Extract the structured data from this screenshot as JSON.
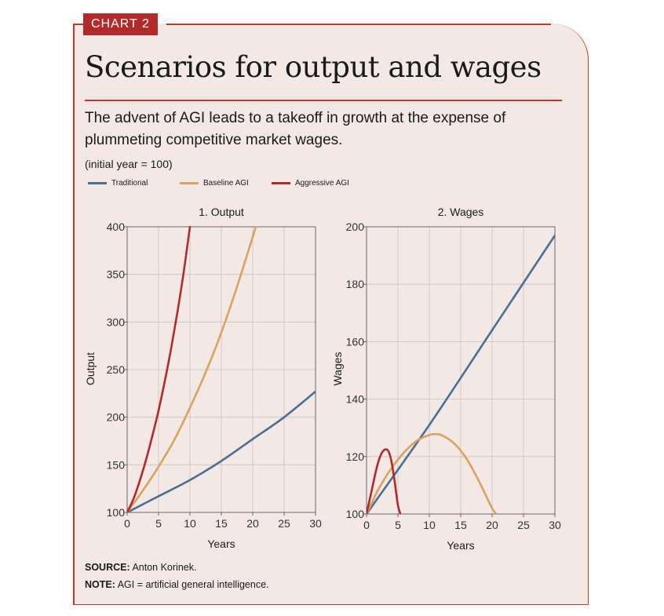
{
  "badge": "CHART 2",
  "title": "Scenarios for output and wages",
  "subtitle": "The advent of AGI leads to a takeoff in growth at the expense of plummeting competitive market wages.",
  "unit_note": "(initial year = 100)",
  "legend": [
    {
      "label": "Traditional",
      "color": "#4a6f93"
    },
    {
      "label": "Baseline AGI",
      "color": "#d9a35b"
    },
    {
      "label": "Aggressive AGI",
      "color": "#b22a2a"
    }
  ],
  "footer": {
    "source_label": "SOURCE:",
    "source_text": "Anton Korinek.",
    "note_label": "NOTE:",
    "note_text": "AGI = artificial general intelligence."
  },
  "colors": {
    "accent": "#c0392b",
    "background": "#f2e8e5",
    "grid": "#c8c2bf"
  },
  "chart_data": [
    {
      "type": "line",
      "title": "1. Output",
      "xlabel": "Years",
      "ylabel": "Output",
      "xlim": [
        0,
        30
      ],
      "ylim": [
        100,
        400
      ],
      "xticks": [
        0,
        5,
        10,
        15,
        20,
        25,
        30
      ],
      "yticks": [
        100,
        150,
        200,
        250,
        300,
        350,
        400
      ],
      "grid": true,
      "series": [
        {
          "name": "Traditional",
          "color": "#4a6f93",
          "x": [
            0,
            5,
            10,
            15,
            20,
            25,
            30
          ],
          "y": [
            100,
            117,
            134,
            154,
            177,
            200,
            227
          ]
        },
        {
          "name": "Baseline AGI",
          "color": "#d9a35b",
          "x": [
            0,
            2.5,
            5,
            7.5,
            10,
            12.5,
            15,
            17.5,
            20.5
          ],
          "y": [
            100,
            123,
            148,
            176,
            210,
            247,
            289,
            337,
            400
          ]
        },
        {
          "name": "Aggressive AGI",
          "color": "#b22a2a",
          "x": [
            0,
            1,
            2,
            3,
            4,
            5,
            6,
            7,
            8,
            9,
            10
          ],
          "y": [
            100,
            114,
            133,
            155,
            180,
            207,
            238,
            272,
            310,
            352,
            400
          ]
        }
      ]
    },
    {
      "type": "line",
      "title": "2. Wages",
      "xlabel": "Years",
      "ylabel": "Wages",
      "xlim": [
        0,
        30
      ],
      "ylim": [
        100,
        200
      ],
      "xticks": [
        0,
        5,
        10,
        15,
        20,
        25,
        30
      ],
      "yticks": [
        100,
        120,
        140,
        160,
        180,
        200
      ],
      "grid": true,
      "series": [
        {
          "name": "Traditional",
          "color": "#4a6f93",
          "x": [
            0,
            10,
            20,
            30
          ],
          "y": [
            100,
            131,
            164,
            197
          ]
        },
        {
          "name": "Baseline AGI",
          "color": "#d9a35b",
          "x": [
            0,
            2,
            4,
            6,
            8,
            10,
            11,
            12,
            14,
            16,
            18,
            20,
            20.7
          ],
          "y": [
            100,
            109,
            116,
            121.5,
            125.5,
            127.5,
            127.8,
            127.4,
            124.5,
            119,
            111,
            102,
            100
          ]
        },
        {
          "name": "Aggressive AGI",
          "color": "#b22a2a",
          "x": [
            0,
            0.5,
            1,
            1.5,
            2,
            2.5,
            3,
            3.5,
            4,
            4.5,
            5,
            5.4
          ],
          "y": [
            100,
            105,
            110,
            115,
            119,
            121.5,
            122.5,
            121.8,
            118,
            111,
            103,
            100
          ]
        }
      ]
    }
  ]
}
